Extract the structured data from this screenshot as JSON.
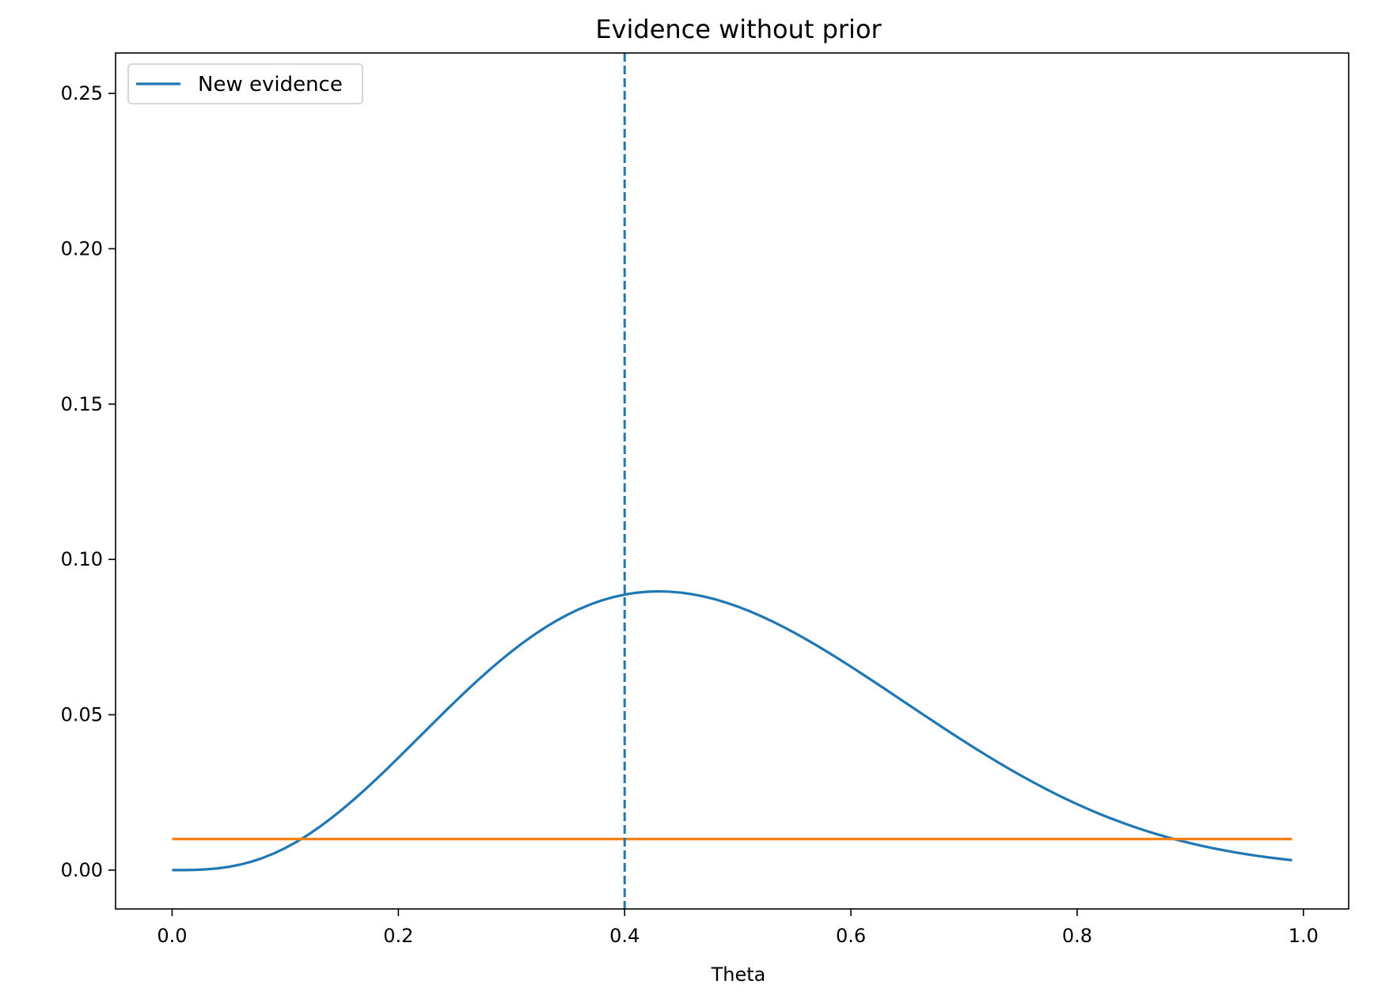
{
  "chart_data": {
    "type": "line",
    "title": "Evidence without prior",
    "xlabel": "Theta",
    "ylabel": "",
    "xlim": [
      -0.05,
      1.04
    ],
    "ylim": [
      -0.0125,
      0.263
    ],
    "xticks": [
      0.0,
      0.2,
      0.4,
      0.6,
      0.8,
      1.0
    ],
    "xtick_labels": [
      "0.0",
      "0.2",
      "0.4",
      "0.6",
      "0.8",
      "1.0"
    ],
    "yticks": [
      0.0,
      0.05,
      0.1,
      0.15,
      0.2,
      0.25
    ],
    "ytick_labels": [
      "0.00",
      "0.05",
      "0.10",
      "0.15",
      "0.20",
      "0.25"
    ],
    "grid": false,
    "legend_position": "upper-left",
    "legend": [
      {
        "label": "New evidence",
        "color": "#1f77b4"
      }
    ],
    "series": [
      {
        "name": "New evidence",
        "color": "#1f77b4",
        "style": "solid",
        "x": [
          0.0,
          0.01,
          0.02,
          0.03,
          0.04,
          0.05,
          0.06,
          0.07,
          0.08,
          0.09,
          0.1,
          0.11,
          0.12,
          0.13,
          0.14,
          0.15,
          0.16,
          0.17,
          0.18,
          0.19,
          0.2,
          0.21,
          0.22,
          0.23,
          0.24,
          0.25,
          0.26,
          0.27,
          0.28,
          0.29,
          0.3,
          0.31,
          0.32,
          0.33,
          0.34,
          0.35,
          0.36,
          0.37,
          0.38,
          0.39,
          0.4,
          0.41,
          0.42,
          0.43,
          0.44,
          0.45,
          0.46,
          0.47,
          0.48,
          0.49,
          0.5,
          0.51,
          0.52,
          0.53,
          0.54,
          0.55,
          0.56,
          0.57,
          0.58,
          0.59,
          0.6,
          0.61,
          0.62,
          0.63,
          0.64,
          0.65,
          0.66,
          0.67,
          0.68,
          0.69,
          0.7,
          0.71,
          0.72,
          0.73,
          0.74,
          0.75,
          0.76,
          0.77,
          0.78,
          0.79,
          0.8,
          0.81,
          0.82,
          0.83,
          0.84,
          0.85,
          0.86,
          0.87,
          0.88,
          0.89,
          0.9,
          0.91,
          0.92,
          0.93,
          0.94,
          0.95,
          0.96,
          0.97,
          0.98,
          0.99
        ],
        "y": [
          0.0,
          1e-05,
          7e-05,
          0.00024,
          0.00055,
          0.00105,
          0.00176,
          0.0027,
          0.00391,
          0.00537,
          0.0071,
          0.00909,
          0.01133,
          0.01382,
          0.01652,
          0.01942,
          0.02251,
          0.02575,
          0.02912,
          0.0326,
          0.03616,
          0.03977,
          0.0434,
          0.04703,
          0.05063,
          0.05418,
          0.05766,
          0.06103,
          0.06429,
          0.0674,
          0.07036,
          0.07315,
          0.07574,
          0.07814,
          0.08033,
          0.0823,
          0.08404,
          0.08555,
          0.08683,
          0.08787,
          0.08868,
          0.08926,
          0.0896,
          0.08972,
          0.08962,
          0.0893,
          0.08878,
          0.08806,
          0.08716,
          0.08607,
          0.08481,
          0.0834,
          0.08184,
          0.08015,
          0.07833,
          0.0764,
          0.07437,
          0.07226,
          0.07006,
          0.0678,
          0.06549,
          0.06313,
          0.06074,
          0.05832,
          0.05589,
          0.05345,
          0.05102,
          0.04859,
          0.04619,
          0.04381,
          0.04146,
          0.03916,
          0.03691,
          0.03471,
          0.03257,
          0.0305,
          0.02849,
          0.02656,
          0.0247,
          0.02292,
          0.02122,
          0.0196,
          0.01806,
          0.01661,
          0.01524,
          0.01395,
          0.01274,
          0.01161,
          0.01056,
          0.00958,
          0.00867,
          0.00783,
          0.00706,
          0.00635,
          0.0057,
          0.0051,
          0.00455,
          0.00405,
          0.0036,
          0.00319
        ]
      },
      {
        "color": "#ff7f0e",
        "style": "solid",
        "x": [
          0.0,
          0.99
        ],
        "y": [
          0.01,
          0.01
        ]
      }
    ],
    "vlines": [
      {
        "x": 0.4,
        "color": "#1f77b4",
        "style": "dashed"
      }
    ]
  }
}
